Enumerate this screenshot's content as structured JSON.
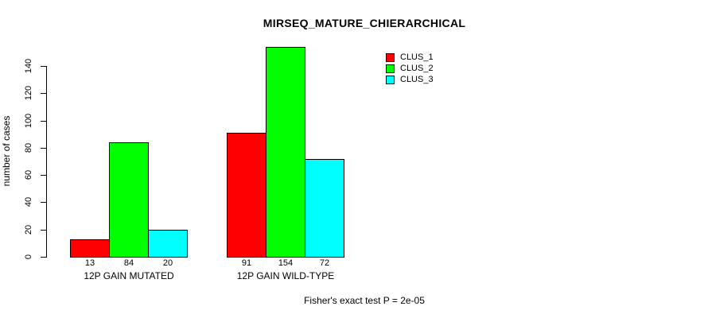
{
  "chart_data": {
    "type": "bar",
    "title": "MIRSEQ_MATURE_CHIERARCHICAL",
    "xlabel": "",
    "ylabel": "number of cases",
    "categories": [
      "12P GAIN MUTATED",
      "12P GAIN WILD-TYPE"
    ],
    "series": [
      {
        "name": "CLUS_1",
        "color": "#ff0000",
        "values": [
          13,
          91
        ]
      },
      {
        "name": "CLUS_2",
        "color": "#00ff00",
        "values": [
          84,
          154
        ]
      },
      {
        "name": "CLUS_3",
        "color": "#00ffff",
        "values": [
          20,
          72
        ]
      }
    ],
    "bar_value_labels": [
      [
        "13",
        "84",
        "20"
      ],
      [
        "91",
        "154",
        "72"
      ]
    ],
    "yticks": [
      0,
      20,
      40,
      60,
      80,
      100,
      120,
      140
    ],
    "ylim": [
      0,
      160
    ],
    "grid": false,
    "legend_position": "top-right",
    "legend_entries": [
      "CLUS_1",
      "CLUS_2",
      "CLUS_3"
    ],
    "annotation": "Fisher's exact test P = 2e-05"
  },
  "colors": {
    "background": "#ffffff",
    "axis": "#000000",
    "text": "#000000",
    "clus_1": "#ff0000",
    "clus_2": "#00ff00",
    "clus_3": "#00ffff"
  }
}
